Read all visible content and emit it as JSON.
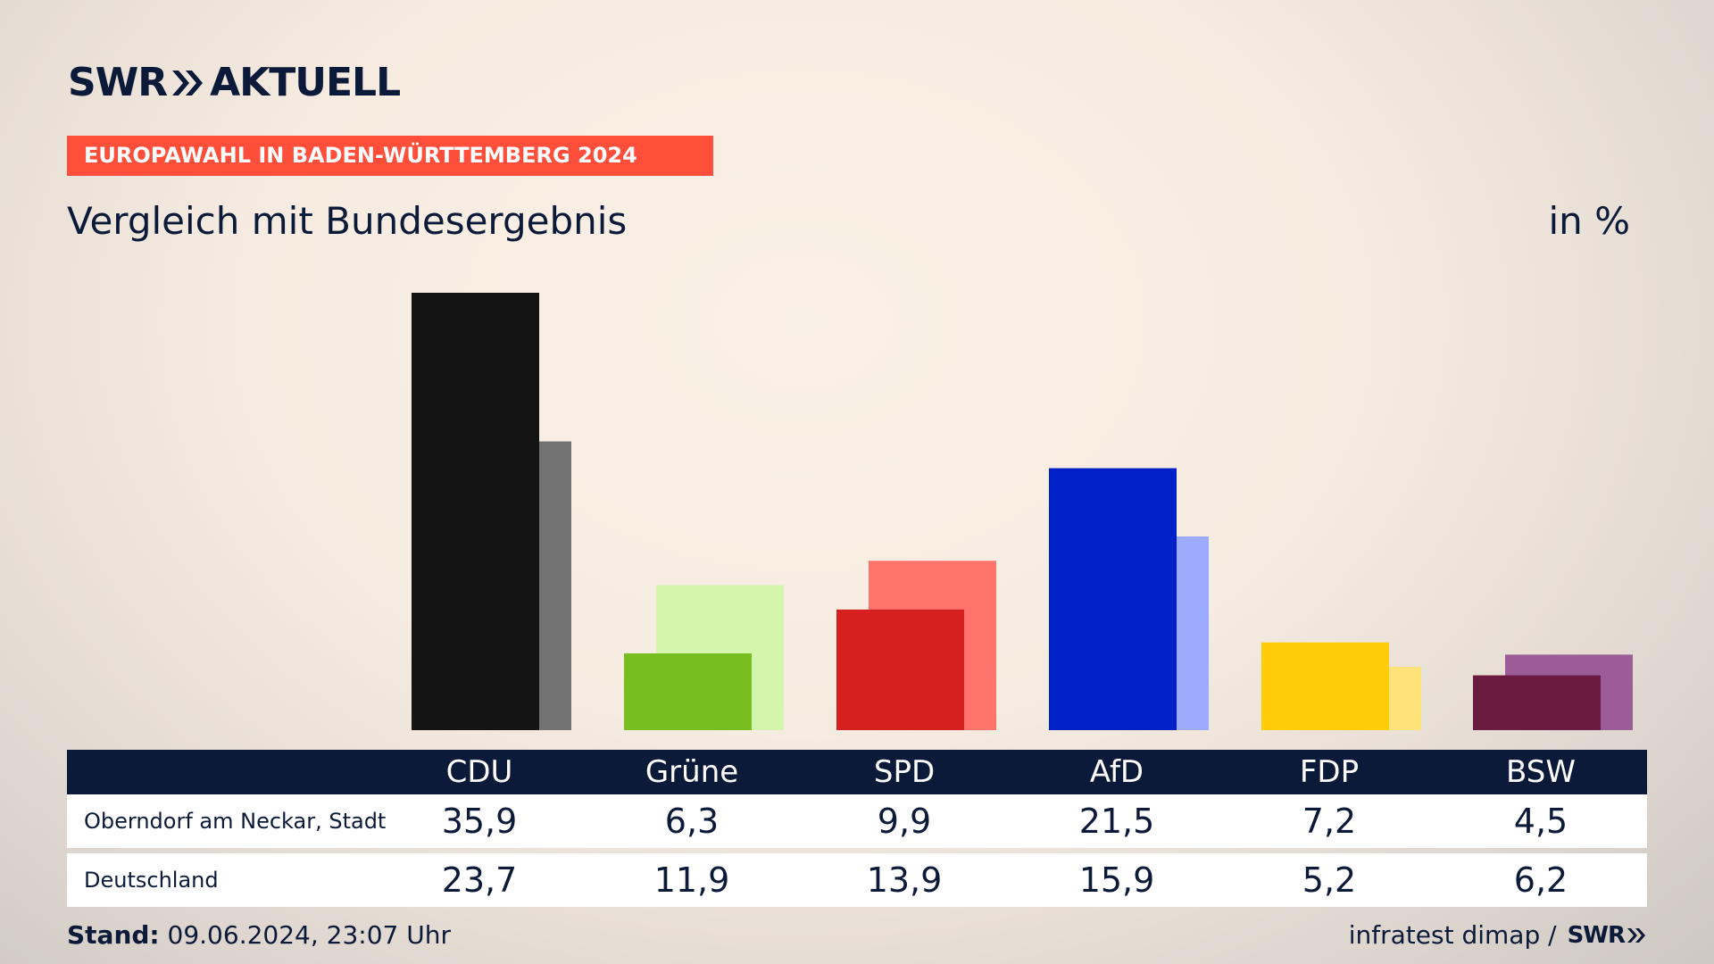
{
  "brand": {
    "logo_swr": "SWR",
    "logo_name": "AKTUELL",
    "source_logo": "SWR"
  },
  "kicker": "EUROPAWAHL IN BADEN-WÜRTTEMBERG 2024",
  "unit": "in %",
  "table": {
    "rows": [
      {
        "label": "Oberndorf am Neckar, Stadt",
        "values": [
          "35,9",
          "6,3",
          "9,9",
          "21,5",
          "7,2",
          "4,5"
        ]
      },
      {
        "label": "Deutschland",
        "values": [
          "23,7",
          "11,9",
          "13,9",
          "15,9",
          "5,2",
          "6,2"
        ]
      }
    ]
  },
  "footer": {
    "stand_label": "Stand:",
    "stand_value": "09.06.2024, 23:07 Uhr",
    "source": "infratest dimap /"
  },
  "chart_data": {
    "type": "bar",
    "title": "Vergleich mit Bundesergebnis",
    "categories": [
      "CDU",
      "Grüne",
      "SPD",
      "AfD",
      "FDP",
      "BSW"
    ],
    "series": [
      {
        "name": "Oberndorf am Neckar, Stadt",
        "values": [
          35.9,
          6.3,
          9.9,
          21.5,
          7.2,
          4.5
        ]
      },
      {
        "name": "Deutschland",
        "values": [
          23.7,
          11.9,
          13.9,
          15.9,
          5.2,
          6.2
        ]
      }
    ],
    "colors": {
      "local": [
        "#141414",
        "#78be1e",
        "#d61f1f",
        "#0020c8",
        "#ffcc0a",
        "#6b1a40"
      ],
      "national": [
        "#737373",
        "#d6f5ac",
        "#ff736d",
        "#9dabff",
        "#ffe27a",
        "#9b5c98"
      ]
    },
    "ylim": [
      0,
      35.9
    ],
    "grid": false,
    "legend": "table-below"
  }
}
